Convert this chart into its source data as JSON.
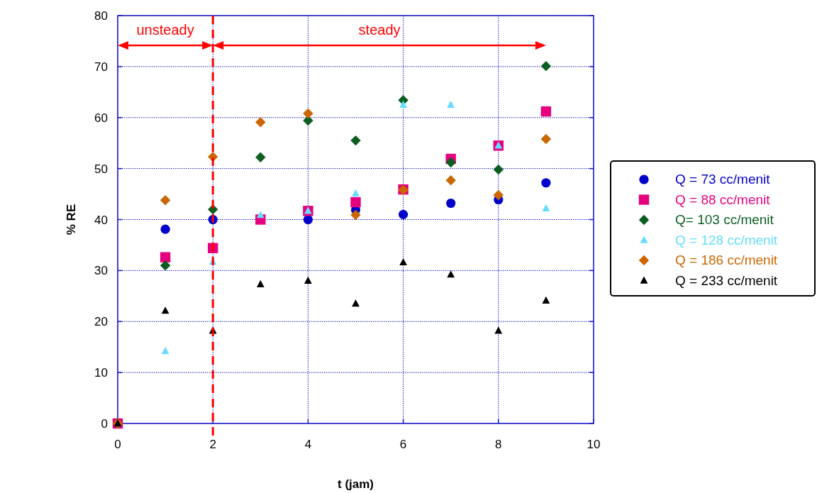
{
  "chart_data": {
    "type": "scatter",
    "xlabel": "t (jam)",
    "ylabel": "% RE",
    "xlim": [
      0,
      10
    ],
    "xticks": [
      0,
      2,
      4,
      6,
      8,
      10
    ],
    "ylim": [
      0,
      80
    ],
    "yticks": [
      0,
      10,
      20,
      30,
      40,
      50,
      60,
      70,
      80
    ],
    "grid": true,
    "legend": "right",
    "x": [
      0,
      1,
      2,
      3,
      4,
      5,
      6,
      7,
      8,
      9
    ],
    "series": [
      {
        "name": "Q = 73 cc/menit",
        "color": "#0000cc",
        "marker": "circle",
        "values": [
          null,
          38.1,
          40,
          null,
          40,
          41.9,
          41,
          43.2,
          43.9,
          47.2
        ]
      },
      {
        "name": "Q = 88 cc/menit",
        "color": "#e6007e",
        "marker": "square",
        "values": [
          0,
          32.6,
          34.4,
          40,
          41.7,
          43.4,
          45.9,
          51.9,
          54.5,
          61.2
        ]
      },
      {
        "name": "Q= 103 cc/menit",
        "color": "#0b5e1f",
        "marker": "diamond",
        "values": [
          0,
          31,
          42,
          52.2,
          59.4,
          55.5,
          63.4,
          51.2,
          49.8,
          70.1
        ]
      },
      {
        "name": "Q = 128 cc/menit",
        "color": "#66ddff",
        "marker": "triangle",
        "values": [
          0,
          14.2,
          31.7,
          40.9,
          41.7,
          45.1,
          62.5,
          62.5,
          54.5,
          42.2
        ]
      },
      {
        "name": "Q = 186 cc/menit",
        "color": "#cc6600",
        "marker": "diamond",
        "values": [
          0,
          43.8,
          52.3,
          59.1,
          60.8,
          40.9,
          45.8,
          47.7,
          44.8,
          55.8
        ]
      },
      {
        "name": "Q = 233 cc/menit",
        "color": "#000000",
        "marker": "triangle",
        "values": [
          0,
          22.1,
          18.2,
          27.3,
          28,
          23.5,
          31.6,
          29.2,
          18.2,
          24.1
        ]
      }
    ],
    "ref_lines": [
      {
        "axis": "x",
        "value": 2,
        "color": "#ff0000",
        "line_style": "dashed"
      }
    ],
    "annotations": [
      "unsteady",
      "steady"
    ]
  }
}
